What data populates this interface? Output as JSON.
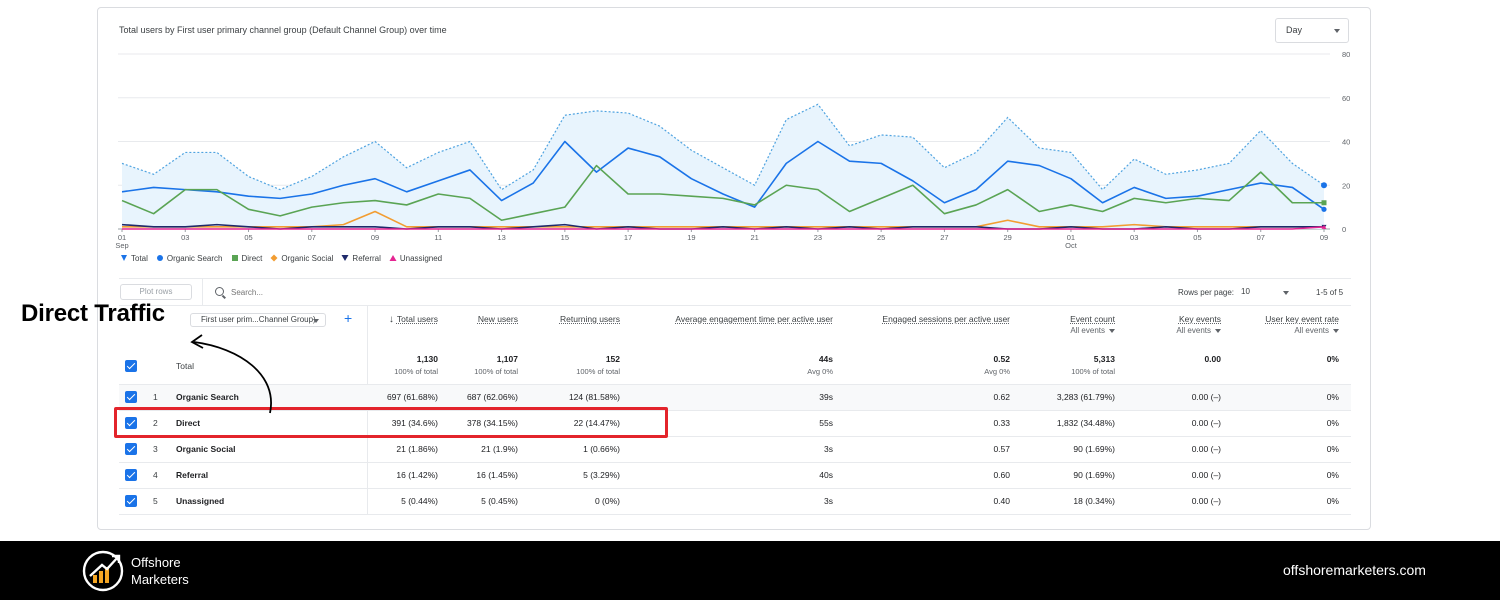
{
  "annotation": {
    "label": "Direct Traffic"
  },
  "chart": {
    "title": "Total users by First user primary channel group (Default Channel Group) over time",
    "granularity": "Day",
    "legend": [
      "Total",
      "Organic Search",
      "Direct",
      "Organic Social",
      "Referral",
      "Unassigned"
    ]
  },
  "chart_data": {
    "type": "line",
    "title": "Total users by First user primary channel group (Default Channel Group) over time",
    "x": [
      "01 Sep",
      "02",
      "03",
      "04",
      "05",
      "06",
      "07",
      "08",
      "09",
      "10",
      "11",
      "12",
      "13",
      "14",
      "15",
      "16",
      "17",
      "18",
      "19",
      "20",
      "21",
      "22",
      "23",
      "24",
      "25",
      "26",
      "27",
      "28",
      "29",
      "30",
      "01 Oct",
      "02",
      "03",
      "04",
      "05",
      "06",
      "07",
      "08",
      "09"
    ],
    "x_ticks": [
      {
        "label": "01",
        "sub": "Sep"
      },
      {
        "label": "03"
      },
      {
        "label": "05"
      },
      {
        "label": "07"
      },
      {
        "label": "09"
      },
      {
        "label": "11"
      },
      {
        "label": "13"
      },
      {
        "label": "15"
      },
      {
        "label": "17"
      },
      {
        "label": "19"
      },
      {
        "label": "21"
      },
      {
        "label": "23"
      },
      {
        "label": "25"
      },
      {
        "label": "27"
      },
      {
        "label": "29"
      },
      {
        "label": "01",
        "sub": "Oct"
      },
      {
        "label": "03"
      },
      {
        "label": "05"
      },
      {
        "label": "07"
      },
      {
        "label": "09"
      }
    ],
    "y_ticks": [
      "0",
      "20",
      "40",
      "60",
      "80"
    ],
    "ylim": [
      0,
      80
    ],
    "legend_position": "bottom-left",
    "series": [
      {
        "name": "Total",
        "color": "#1a73e8",
        "fill": "#e8f4fd",
        "values": [
          30,
          25,
          35,
          35,
          24,
          18,
          24,
          33,
          40,
          28,
          35,
          40,
          18,
          27,
          52,
          54,
          53,
          47,
          36,
          28,
          20,
          50,
          57,
          38,
          43,
          42,
          28,
          35,
          51,
          37,
          35,
          18,
          32,
          25,
          27,
          30,
          45,
          30,
          20
        ]
      },
      {
        "name": "Organic Search",
        "color": "#1a73e8",
        "values": [
          17,
          19,
          18,
          17,
          15,
          14,
          16,
          20,
          23,
          17,
          22,
          27,
          13,
          21,
          40,
          26,
          37,
          33,
          23,
          16,
          10,
          30,
          40,
          31,
          30,
          22,
          12,
          18,
          31,
          29,
          23,
          12,
          19,
          14,
          15,
          18,
          21,
          19,
          9
        ]
      },
      {
        "name": "Direct",
        "color": "#5aa454",
        "values": [
          13,
          7,
          18,
          18,
          9,
          6,
          10,
          12,
          13,
          11,
          16,
          14,
          4,
          7,
          10,
          29,
          16,
          16,
          15,
          14,
          11,
          20,
          18,
          8,
          14,
          20,
          7,
          11,
          18,
          8,
          11,
          8,
          14,
          12,
          14,
          13,
          26,
          12,
          12
        ]
      },
      {
        "name": "Organic Social",
        "color": "#f29d32",
        "values": [
          1,
          1,
          1,
          1,
          1,
          1,
          1,
          2,
          8,
          1,
          1,
          1,
          1,
          1,
          1,
          1,
          1,
          1,
          1,
          1,
          1,
          1,
          1,
          1,
          1,
          1,
          1,
          1,
          4,
          1,
          1,
          1,
          2,
          1,
          1,
          1,
          1,
          1,
          1
        ]
      },
      {
        "name": "Referral",
        "color": "#1f2a6b",
        "values": [
          2,
          1,
          1,
          2,
          1,
          0,
          1,
          1,
          1,
          0,
          1,
          1,
          0,
          1,
          2,
          0,
          1,
          0,
          0,
          1,
          0,
          1,
          0,
          1,
          0,
          1,
          1,
          1,
          0,
          0,
          1,
          0,
          0,
          1,
          0,
          0,
          1,
          1,
          1
        ]
      },
      {
        "name": "Unassigned",
        "color": "#e52592",
        "values": [
          0,
          0,
          0,
          0,
          0,
          0,
          0,
          0,
          0,
          0,
          0,
          0,
          0,
          0,
          0,
          0,
          0,
          0,
          0,
          0,
          0,
          0,
          0,
          0,
          0,
          0,
          0,
          0,
          0,
          0,
          0,
          0,
          0,
          0,
          0,
          0,
          0,
          0,
          1
        ]
      }
    ]
  },
  "toolbar": {
    "plot_rows": "Plot rows",
    "search_placeholder": "Search...",
    "rows_per_page_label": "Rows per page:",
    "rows_per_page_value": "10",
    "range": "1-5 of 5"
  },
  "table": {
    "dimension": "First user prim...Channel Group)",
    "columns": [
      {
        "label": "Total users",
        "sorted": true,
        "arrow": "↓"
      },
      {
        "label": "New users"
      },
      {
        "label": "Returning users"
      },
      {
        "label": "Average engagement time per active user"
      },
      {
        "label": "Engaged sessions per active user"
      },
      {
        "label": "Event count",
        "sub": "All events"
      },
      {
        "label": "Key events",
        "sub": "All events"
      },
      {
        "label": "User key event rate",
        "sub": "All events"
      }
    ],
    "total": {
      "label": "Total",
      "values": [
        {
          "v": "1,130",
          "s": "100% of total"
        },
        {
          "v": "1,107",
          "s": "100% of total"
        },
        {
          "v": "152",
          "s": "100% of total"
        },
        {
          "v": "44s",
          "s": "Avg 0%"
        },
        {
          "v": "0.52",
          "s": "Avg 0%"
        },
        {
          "v": "5,313",
          "s": "100% of total"
        },
        {
          "v": "0.00",
          "s": ""
        },
        {
          "v": "0%",
          "s": ""
        }
      ]
    },
    "rows": [
      {
        "idx": "1",
        "name": "Organic Search",
        "values": [
          "697 (61.68%)",
          "687 (62.06%)",
          "124 (81.58%)",
          "39s",
          "0.62",
          "3,283 (61.79%)",
          "0.00 (–)",
          "0%"
        ]
      },
      {
        "idx": "2",
        "name": "Direct",
        "values": [
          "391 (34.6%)",
          "378 (34.15%)",
          "22 (14.47%)",
          "55s",
          "0.33",
          "1,832 (34.48%)",
          "0.00 (–)",
          "0%"
        ]
      },
      {
        "idx": "3",
        "name": "Organic Social",
        "values": [
          "21 (1.86%)",
          "21 (1.9%)",
          "1 (0.66%)",
          "3s",
          "0.57",
          "90 (1.69%)",
          "0.00 (–)",
          "0%"
        ]
      },
      {
        "idx": "4",
        "name": "Referral",
        "values": [
          "16 (1.42%)",
          "16 (1.45%)",
          "5 (3.29%)",
          "40s",
          "0.60",
          "90 (1.69%)",
          "0.00 (–)",
          "0%"
        ]
      },
      {
        "idx": "5",
        "name": "Unassigned",
        "values": [
          "5 (0.44%)",
          "5 (0.45%)",
          "0 (0%)",
          "3s",
          "0.40",
          "18 (0.34%)",
          "0.00 (–)",
          "0%"
        ]
      }
    ]
  },
  "footer": {
    "brand_line1": "Offshore",
    "brand_line2": "Marketers",
    "site": "offshoremarketers.com",
    "bg_color": "#000000",
    "accent_color": "#f5a623"
  }
}
